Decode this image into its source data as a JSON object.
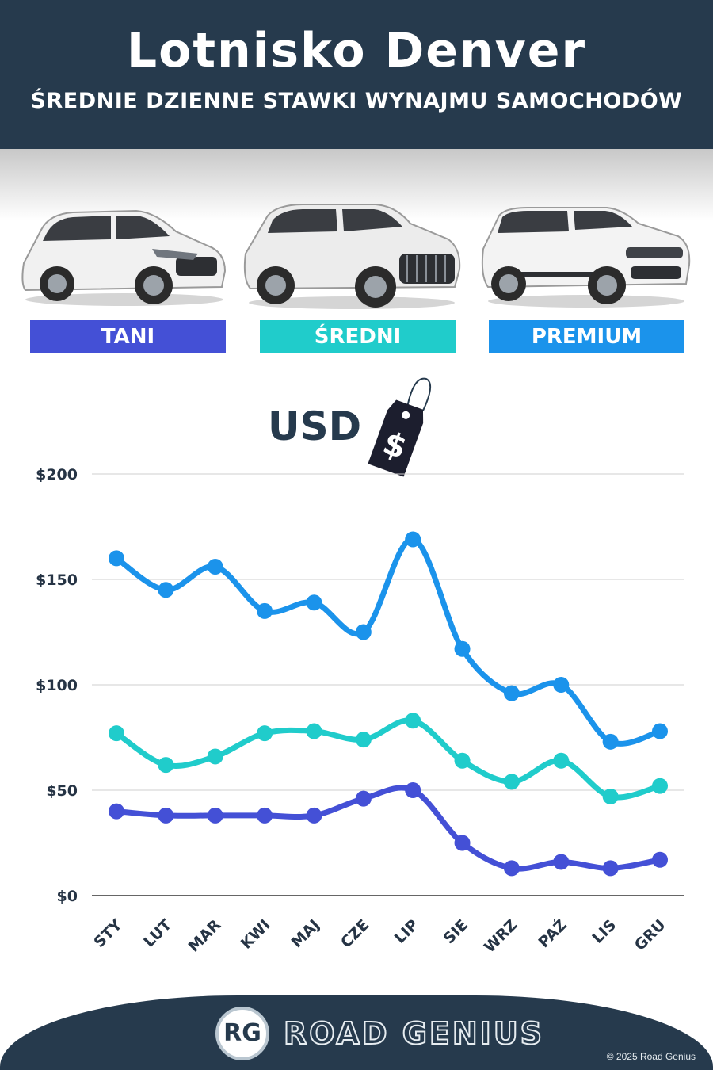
{
  "header": {
    "title": "Lotnisko Denver",
    "subtitle": "ŚREDNIE DZIENNE STAWKI WYNAJMU SAMOCHODÓW"
  },
  "categories": [
    {
      "label": "TANI",
      "color": "#4450d6",
      "icon": "hatchback-car-icon"
    },
    {
      "label": "ŚREDNI",
      "color": "#20cccb",
      "icon": "suv-car-icon"
    },
    {
      "label": "PREMIUM",
      "color": "#1b93eb",
      "icon": "premium-suv-car-icon"
    }
  ],
  "currency_label": "USD",
  "price_tag_symbol": "$",
  "chart_data": {
    "type": "line",
    "categories": [
      "STY",
      "LUT",
      "MAR",
      "KWI",
      "MAJ",
      "CZE",
      "LIP",
      "SIE",
      "WRZ",
      "PAŹ",
      "LIS",
      "GRU"
    ],
    "series": [
      {
        "name": "PREMIUM",
        "color": "#1b93eb",
        "values": [
          160,
          145,
          156,
          135,
          139,
          125,
          169,
          117,
          96,
          100,
          73,
          78
        ]
      },
      {
        "name": "ŚREDNI",
        "color": "#20cccb",
        "values": [
          77,
          62,
          66,
          77,
          78,
          74,
          83,
          64,
          54,
          64,
          47,
          52
        ]
      },
      {
        "name": "TANI",
        "color": "#4450d6",
        "values": [
          40,
          38,
          38,
          38,
          38,
          46,
          50,
          25,
          13,
          16,
          13,
          17
        ]
      }
    ],
    "yticks": [
      "$0",
      "$50",
      "$100",
      "$150",
      "$200"
    ],
    "ylim": [
      0,
      200
    ],
    "grid": true
  },
  "footer": {
    "logo_initials": "RG",
    "brand": "ROAD GENIUS",
    "copyright": "© 2025 Road Genius"
  }
}
